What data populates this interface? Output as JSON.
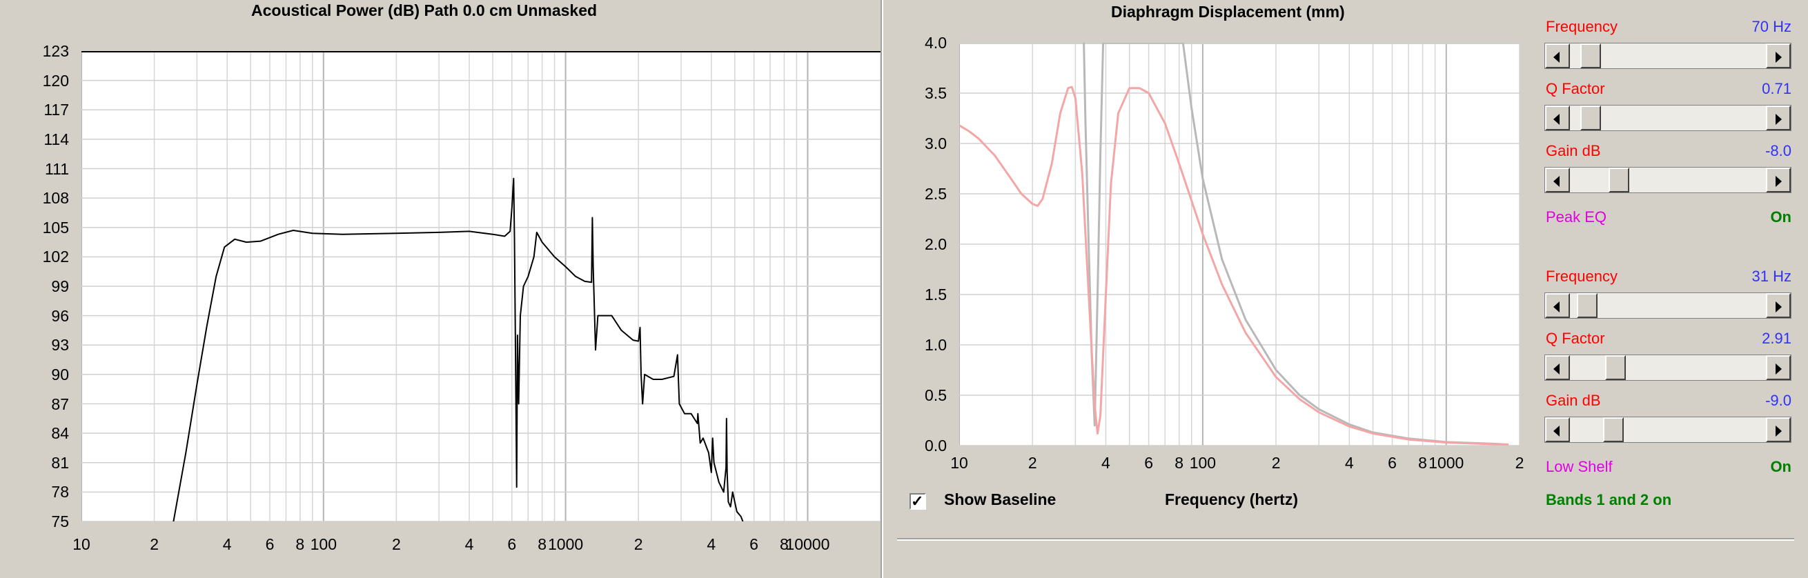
{
  "chart_data": [
    {
      "type": "line",
      "title": "Acoustical Power (dB)   Path 0.0 cm   Unmasked",
      "xscale": "log",
      "xlim": [
        10,
        20000
      ],
      "ylim": [
        75,
        123
      ],
      "ytick_labels": [
        "123",
        "120",
        "117",
        "114",
        "111",
        "108",
        "105",
        "102",
        "99",
        "96",
        "93",
        "90",
        "87",
        "84",
        "81",
        "78",
        "75"
      ],
      "xtick_labels": [
        {
          "x": 10,
          "label": "10"
        },
        {
          "x": 20,
          "label": "2"
        },
        {
          "x": 40,
          "label": "4"
        },
        {
          "x": 60,
          "label": "6"
        },
        {
          "x": 80,
          "label": "8"
        },
        {
          "x": 100,
          "label": "100"
        },
        {
          "x": 200,
          "label": "2"
        },
        {
          "x": 400,
          "label": "4"
        },
        {
          "x": 600,
          "label": "6"
        },
        {
          "x": 800,
          "label": "8"
        },
        {
          "x": 1000,
          "label": "1000"
        },
        {
          "x": 2000,
          "label": "2"
        },
        {
          "x": 4000,
          "label": "4"
        },
        {
          "x": 6000,
          "label": "6"
        },
        {
          "x": 8000,
          "label": "8"
        },
        {
          "x": 10000,
          "label": "10000"
        }
      ],
      "grid": true,
      "series": [
        {
          "color": "#000000",
          "points": [
            [
              24,
              75
            ],
            [
              27,
              82
            ],
            [
              30,
              89
            ],
            [
              33,
              95
            ],
            [
              36,
              100
            ],
            [
              39,
              103
            ],
            [
              43,
              103.8
            ],
            [
              48,
              103.5
            ],
            [
              55,
              103.6
            ],
            [
              65,
              104.3
            ],
            [
              75,
              104.7
            ],
            [
              90,
              104.4
            ],
            [
              120,
              104.3
            ],
            [
              200,
              104.4
            ],
            [
              300,
              104.5
            ],
            [
              400,
              104.6
            ],
            [
              500,
              104.3
            ],
            [
              560,
              104.1
            ],
            [
              590,
              104.6
            ],
            [
              600,
              107
            ],
            [
              610,
              110
            ],
            [
              615,
              104
            ],
            [
              620,
              94
            ],
            [
              628,
              78.5
            ],
            [
              633,
              94
            ],
            [
              640,
              87
            ],
            [
              650,
              96
            ],
            [
              670,
              99
            ],
            [
              700,
              100
            ],
            [
              740,
              102
            ],
            [
              760,
              104.5
            ],
            [
              800,
              103.5
            ],
            [
              900,
              102
            ],
            [
              1000,
              101
            ],
            [
              1100,
              100
            ],
            [
              1200,
              99.5
            ],
            [
              1280,
              99.4
            ],
            [
              1290,
              106
            ],
            [
              1300,
              101
            ],
            [
              1330,
              92.5
            ],
            [
              1360,
              96
            ],
            [
              1450,
              96
            ],
            [
              1550,
              96
            ],
            [
              1700,
              94.5
            ],
            [
              1900,
              93.5
            ],
            [
              2000,
              93.4
            ],
            [
              2030,
              94.8
            ],
            [
              2050,
              90
            ],
            [
              2080,
              87
            ],
            [
              2120,
              90
            ],
            [
              2300,
              89.5
            ],
            [
              2500,
              89.5
            ],
            [
              2800,
              89.8
            ],
            [
              2900,
              92
            ],
            [
              2950,
              87
            ],
            [
              3100,
              86
            ],
            [
              3300,
              86
            ],
            [
              3500,
              85
            ],
            [
              3520,
              86
            ],
            [
              3600,
              83
            ],
            [
              3700,
              83.5
            ],
            [
              3900,
              82
            ],
            [
              4000,
              80
            ],
            [
              4050,
              83.5
            ],
            [
              4100,
              81
            ],
            [
              4300,
              79
            ],
            [
              4500,
              78
            ],
            [
              4600,
              80.5
            ],
            [
              4620,
              85.5
            ],
            [
              4650,
              80
            ],
            [
              4700,
              77
            ],
            [
              4800,
              76.5
            ],
            [
              4900,
              78
            ],
            [
              5100,
              76
            ],
            [
              5300,
              75.5
            ],
            [
              5400,
              75
            ]
          ]
        }
      ]
    },
    {
      "type": "line",
      "title": "Diaphragm Displacement (mm)",
      "xlabel": "Frequency (hertz)",
      "xscale": "log",
      "xlim": [
        10,
        2000
      ],
      "ylim": [
        0,
        4
      ],
      "ytick_labels": [
        "4.0",
        "3.5",
        "3.0",
        "2.5",
        "2.0",
        "1.5",
        "1.0",
        "0.5",
        "0.0"
      ],
      "xtick_labels": [
        {
          "x": 10,
          "label": "10"
        },
        {
          "x": 20,
          "label": "2"
        },
        {
          "x": 40,
          "label": "4"
        },
        {
          "x": 60,
          "label": "6"
        },
        {
          "x": 80,
          "label": "8"
        },
        {
          "x": 100,
          "label": "100"
        },
        {
          "x": 200,
          "label": "2"
        },
        {
          "x": 400,
          "label": "4"
        },
        {
          "x": 600,
          "label": "6"
        },
        {
          "x": 800,
          "label": "8"
        },
        {
          "x": 1000,
          "label": "1000"
        },
        {
          "x": 2000,
          "label": "2"
        }
      ],
      "grid": true,
      "series": [
        {
          "name": "Baseline",
          "color": "#b8b8b8",
          "points": [
            [
              32.5,
              4.0
            ],
            [
              33,
              3.2
            ],
            [
              34,
              2.0
            ],
            [
              35,
              0.9
            ],
            [
              36,
              0.2
            ],
            [
              37,
              1.5
            ],
            [
              38,
              2.9
            ],
            [
              39,
              4.0
            ],
            [
              83,
              4.0
            ],
            [
              90,
              3.35
            ],
            [
              100,
              2.65
            ],
            [
              120,
              1.85
            ],
            [
              150,
              1.25
            ],
            [
              200,
              0.75
            ],
            [
              250,
              0.5
            ],
            [
              300,
              0.36
            ],
            [
              400,
              0.21
            ],
            [
              500,
              0.13
            ],
            [
              700,
              0.07
            ],
            [
              1000,
              0.035
            ],
            [
              1500,
              0.02
            ],
            [
              1800,
              0.01
            ]
          ]
        },
        {
          "color": "#f4a6a6",
          "points": [
            [
              10,
              3.18
            ],
            [
              11,
              3.12
            ],
            [
              12,
              3.05
            ],
            [
              14,
              2.88
            ],
            [
              16,
              2.68
            ],
            [
              18,
              2.5
            ],
            [
              20,
              2.4
            ],
            [
              21,
              2.38
            ],
            [
              22,
              2.45
            ],
            [
              24,
              2.8
            ],
            [
              26,
              3.3
            ],
            [
              28,
              3.55
            ],
            [
              29,
              3.56
            ],
            [
              30,
              3.45
            ],
            [
              32,
              2.7
            ],
            [
              34,
              1.5
            ],
            [
              36,
              0.4
            ],
            [
              37,
              0.12
            ],
            [
              38,
              0.3
            ],
            [
              40,
              1.5
            ],
            [
              42,
              2.6
            ],
            [
              45,
              3.3
            ],
            [
              50,
              3.55
            ],
            [
              55,
              3.55
            ],
            [
              60,
              3.5
            ],
            [
              70,
              3.2
            ],
            [
              80,
              2.8
            ],
            [
              100,
              2.1
            ],
            [
              120,
              1.6
            ],
            [
              150,
              1.12
            ],
            [
              200,
              0.68
            ],
            [
              250,
              0.46
            ],
            [
              300,
              0.33
            ],
            [
              400,
              0.19
            ],
            [
              500,
              0.12
            ],
            [
              700,
              0.06
            ],
            [
              1000,
              0.03
            ],
            [
              1500,
              0.015
            ],
            [
              1800,
              0.01
            ]
          ]
        }
      ]
    }
  ],
  "baseline_toggle": {
    "label": "Show Baseline",
    "checked_mark": "✓"
  },
  "eq": {
    "band1": {
      "frequency": {
        "label": "Frequency",
        "value": "70 Hz",
        "slider": 0.06
      },
      "q": {
        "label": "Q Factor",
        "value": "0.71",
        "slider": 0.06
      },
      "gain": {
        "label": "Gain  dB",
        "value": "-8.0",
        "slider": 0.22
      },
      "type": {
        "label": "Peak EQ",
        "state": "On"
      }
    },
    "band2": {
      "frequency": {
        "label": "Frequency",
        "value": "31 Hz",
        "slider": 0.04
      },
      "q": {
        "label": "Q Factor",
        "value": "2.91",
        "slider": 0.2
      },
      "gain": {
        "label": "Gain  dB",
        "value": "-9.0",
        "slider": 0.19
      },
      "type": {
        "label": "Low Shelf",
        "state": "On"
      }
    },
    "status": "Bands 1 and 2 on"
  },
  "colors": {
    "label_red": "#ff0000",
    "value_blue": "#3030ff",
    "type_magenta": "#e000e0",
    "on_green": "#008000"
  }
}
